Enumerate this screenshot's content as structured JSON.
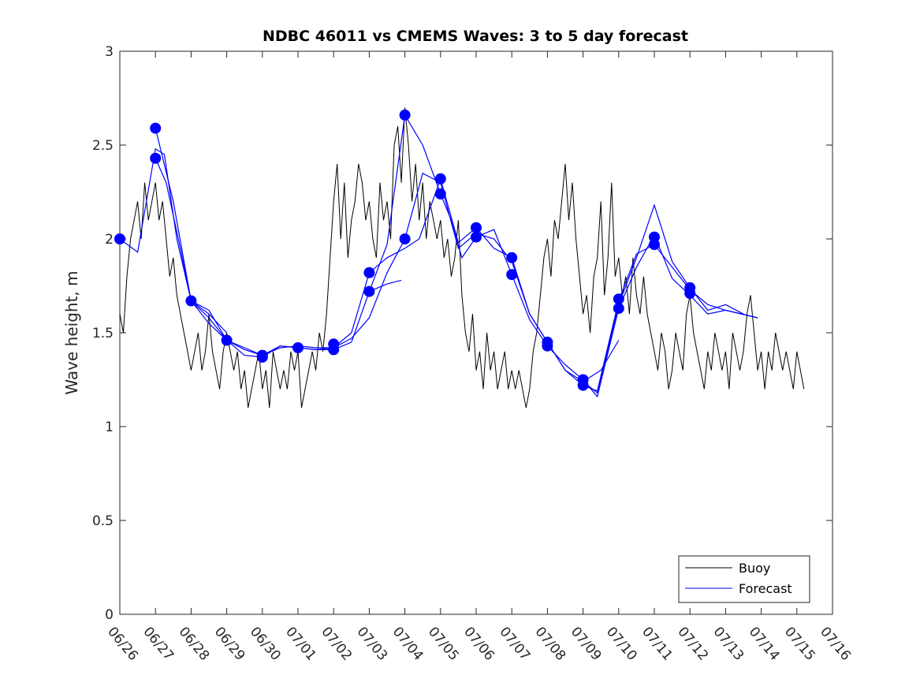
{
  "chart_data": {
    "type": "line",
    "title": "NDBC 46011 vs CMEMS Waves: 3 to 5 day forecast",
    "ylabel": "Wave height, m",
    "xlabel": "",
    "x_ticks": [
      "06/26",
      "06/27",
      "06/28",
      "06/29",
      "06/30",
      "07/01",
      "07/02",
      "07/03",
      "07/04",
      "07/05",
      "07/06",
      "07/07",
      "07/08",
      "07/09",
      "07/10",
      "07/11",
      "07/12",
      "07/13",
      "07/14",
      "07/15",
      "07/16"
    ],
    "y_ticks": [
      "0",
      "0.5",
      "1",
      "1.5",
      "2",
      "2.5",
      "3"
    ],
    "xlim": [
      0,
      20
    ],
    "ylim": [
      0,
      3
    ],
    "grid": false,
    "legend_position": "bottom-right",
    "colors": {
      "buoy": "#000000",
      "forecast": "#0000ff"
    },
    "legend": [
      "Buoy",
      "Forecast"
    ],
    "series": [
      {
        "name": "Buoy",
        "x": [
          0.0,
          0.1,
          0.2,
          0.3,
          0.4,
          0.5,
          0.6,
          0.7,
          0.8,
          0.9,
          1.0,
          1.1,
          1.2,
          1.3,
          1.4,
          1.5,
          1.6,
          1.7,
          1.8,
          1.9,
          2.0,
          2.1,
          2.2,
          2.3,
          2.4,
          2.5,
          2.6,
          2.7,
          2.8,
          2.9,
          3.0,
          3.1,
          3.2,
          3.3,
          3.4,
          3.5,
          3.6,
          3.7,
          3.8,
          3.9,
          4.0,
          4.1,
          4.2,
          4.3,
          4.4,
          4.5,
          4.6,
          4.7,
          4.8,
          4.9,
          5.0,
          5.1,
          5.2,
          5.3,
          5.4,
          5.5,
          5.6,
          5.7,
          5.8,
          5.9,
          6.0,
          6.1,
          6.2,
          6.3,
          6.4,
          6.5,
          6.6,
          6.7,
          6.8,
          6.9,
          7.0,
          7.1,
          7.2,
          7.3,
          7.4,
          7.5,
          7.6,
          7.7,
          7.8,
          7.9,
          8.0,
          8.1,
          8.2,
          8.3,
          8.4,
          8.5,
          8.6,
          8.7,
          8.8,
          8.9,
          9.0,
          9.1,
          9.2,
          9.3,
          9.4,
          9.5,
          9.6,
          9.7,
          9.8,
          9.9,
          10.0,
          10.1,
          10.2,
          10.3,
          10.4,
          10.5,
          10.6,
          10.7,
          10.8,
          10.9,
          11.0,
          11.1,
          11.2,
          11.3,
          11.4,
          11.5,
          11.6,
          11.7,
          11.8,
          11.9,
          12.0,
          12.1,
          12.2,
          12.3,
          12.4,
          12.5,
          12.6,
          12.7,
          12.8,
          12.9,
          13.0,
          13.1,
          13.2,
          13.3,
          13.4,
          13.5,
          13.6,
          13.7,
          13.8,
          13.9,
          14.0,
          14.1,
          14.2,
          14.3,
          14.4,
          14.5,
          14.6,
          14.7,
          14.8,
          14.9,
          15.0,
          15.1,
          15.2,
          15.3,
          15.4,
          15.5,
          15.6,
          15.7,
          15.8,
          15.9,
          16.0,
          16.1,
          16.2,
          16.3,
          16.4,
          16.5,
          16.6,
          16.7,
          16.8,
          16.9,
          17.0,
          17.1,
          17.2,
          17.3,
          17.4,
          17.5,
          17.6,
          17.7,
          17.8,
          17.9,
          18.0,
          18.1,
          18.2,
          18.3,
          18.4,
          18.5,
          18.6,
          18.7,
          18.8,
          18.9,
          19.0,
          19.1,
          19.2
        ],
        "values": [
          1.6,
          1.5,
          1.8,
          2.0,
          2.1,
          2.2,
          2.0,
          2.3,
          2.1,
          2.2,
          2.3,
          2.1,
          2.2,
          2.0,
          1.8,
          1.9,
          1.7,
          1.6,
          1.5,
          1.4,
          1.3,
          1.4,
          1.5,
          1.3,
          1.4,
          1.6,
          1.4,
          1.3,
          1.2,
          1.4,
          1.5,
          1.4,
          1.3,
          1.4,
          1.2,
          1.3,
          1.1,
          1.2,
          1.3,
          1.4,
          1.2,
          1.3,
          1.1,
          1.4,
          1.3,
          1.2,
          1.3,
          1.2,
          1.4,
          1.3,
          1.4,
          1.1,
          1.2,
          1.3,
          1.4,
          1.3,
          1.5,
          1.4,
          1.6,
          1.9,
          2.2,
          2.4,
          2.0,
          2.3,
          1.9,
          2.1,
          2.2,
          2.4,
          2.3,
          2.1,
          2.2,
          2.0,
          1.9,
          2.3,
          2.1,
          2.2,
          2.0,
          2.5,
          2.6,
          2.3,
          2.7,
          2.5,
          2.2,
          2.4,
          2.1,
          2.3,
          2.0,
          2.2,
          2.1,
          2.0,
          2.1,
          1.9,
          2.0,
          1.8,
          1.9,
          2.1,
          1.7,
          1.5,
          1.4,
          1.6,
          1.3,
          1.4,
          1.2,
          1.5,
          1.3,
          1.4,
          1.2,
          1.3,
          1.4,
          1.2,
          1.3,
          1.2,
          1.3,
          1.2,
          1.1,
          1.2,
          1.4,
          1.5,
          1.7,
          1.9,
          2.0,
          1.8,
          2.1,
          2.0,
          2.2,
          2.4,
          2.1,
          2.3,
          2.0,
          1.8,
          1.6,
          1.7,
          1.5,
          1.8,
          1.9,
          2.2,
          1.7,
          1.9,
          2.3,
          1.8,
          1.9,
          1.7,
          1.8,
          1.6,
          1.9,
          1.7,
          1.6,
          1.8,
          1.6,
          1.5,
          1.4,
          1.3,
          1.5,
          1.4,
          1.2,
          1.3,
          1.5,
          1.4,
          1.3,
          1.6,
          1.7,
          1.5,
          1.4,
          1.3,
          1.2,
          1.4,
          1.3,
          1.5,
          1.4,
          1.3,
          1.4,
          1.2,
          1.5,
          1.4,
          1.3,
          1.4,
          1.6,
          1.7,
          1.5,
          1.3,
          1.4,
          1.2,
          1.4,
          1.3,
          1.5,
          1.4,
          1.3,
          1.4,
          1.3,
          1.2,
          1.4,
          1.3,
          1.2
        ]
      },
      {
        "name": "Forecast",
        "lines": [
          [
            [
              0,
              2.0
            ],
            [
              0.5,
              1.93
            ],
            [
              1.0,
              2.48
            ],
            [
              1.25,
              2.45
            ],
            [
              1.6,
              2.0
            ],
            [
              2.0,
              1.67
            ],
            [
              2.5,
              1.55
            ],
            [
              3.0,
              1.46
            ],
            [
              3.5,
              1.41
            ],
            [
              4.0,
              1.38
            ],
            [
              4.5,
              1.42
            ],
            [
              5.0,
              1.43
            ],
            [
              5.5,
              1.42
            ],
            [
              6.0,
              1.42
            ],
            [
              6.5,
              1.47
            ],
            [
              7.0,
              1.58
            ],
            [
              7.5,
              1.82
            ],
            [
              8.0,
              2.0
            ],
            [
              8.5,
              2.35
            ],
            [
              9.0,
              2.3
            ],
            [
              9.5,
              1.95
            ],
            [
              10.0,
              2.03
            ],
            [
              10.5,
              2.0
            ],
            [
              11.0,
              1.88
            ],
            [
              11.5,
              1.6
            ],
            [
              12.0,
              1.45
            ],
            [
              12.5,
              1.3
            ],
            [
              13.0,
              1.24
            ],
            [
              13.4,
              1.18
            ],
            [
              14.0,
              1.65
            ],
            [
              14.5,
              1.9
            ],
            [
              15.0,
              2.18
            ],
            [
              15.5,
              1.88
            ],
            [
              16.0,
              1.74
            ],
            [
              16.5,
              1.62
            ],
            [
              17.0,
              1.65
            ],
            [
              17.5,
              1.6
            ]
          ],
          [
            [
              1.0,
              2.43
            ],
            [
              1.3,
              2.3
            ],
            [
              1.7,
              1.95
            ],
            [
              2.0,
              1.67
            ],
            [
              2.5,
              1.62
            ],
            [
              3.0,
              1.46
            ],
            [
              3.5,
              1.38
            ],
            [
              4.0,
              1.37
            ],
            [
              4.5,
              1.43
            ],
            [
              5.0,
              1.42
            ],
            [
              5.5,
              1.41
            ],
            [
              6.0,
              1.41
            ],
            [
              6.5,
              1.45
            ],
            [
              7.0,
              1.72
            ],
            [
              7.5,
              1.97
            ],
            [
              8.0,
              2.66
            ],
            [
              8.5,
              2.5
            ],
            [
              9.0,
              2.24
            ],
            [
              9.3,
              2.1
            ],
            [
              9.6,
              1.9
            ],
            [
              10.0,
              2.01
            ],
            [
              10.5,
              2.05
            ],
            [
              11.0,
              1.81
            ],
            [
              11.5,
              1.57
            ],
            [
              12.0,
              1.43
            ],
            [
              12.5,
              1.33
            ],
            [
              13.0,
              1.25
            ],
            [
              13.4,
              1.16
            ],
            [
              14.0,
              1.63
            ],
            [
              14.5,
              1.85
            ],
            [
              15.0,
              2.02
            ],
            [
              15.5,
              1.79
            ],
            [
              16.0,
              1.7
            ],
            [
              16.5,
              1.6
            ],
            [
              17.0,
              1.62
            ],
            [
              17.9,
              1.58
            ]
          ],
          [
            [
              1.0,
              2.59
            ],
            [
              1.5,
              2.2
            ],
            [
              2.0,
              1.67
            ],
            [
              2.5,
              1.58
            ],
            [
              3.0,
              1.46
            ],
            [
              3.5,
              1.42
            ],
            [
              4.0,
              1.38
            ],
            [
              4.5,
              1.43
            ],
            [
              5.0,
              1.42
            ],
            [
              5.5,
              1.41
            ],
            [
              6.0,
              1.42
            ],
            [
              6.5,
              1.5
            ],
            [
              7.0,
              1.82
            ],
            [
              7.5,
              1.9
            ],
            [
              8.0,
              1.95
            ],
            [
              8.4,
              2.0
            ],
            [
              9.0,
              2.32
            ],
            [
              9.5,
              1.98
            ],
            [
              10.0,
              2.06
            ],
            [
              10.5,
              1.95
            ],
            [
              11.0,
              1.9
            ],
            [
              11.5,
              1.6
            ],
            [
              12.0,
              1.45
            ],
            [
              12.5,
              1.3
            ],
            [
              13.0,
              1.22
            ],
            [
              13.4,
              1.19
            ],
            [
              14.0,
              1.67
            ],
            [
              14.5,
              1.92
            ],
            [
              15.0,
              1.97
            ],
            [
              15.5,
              1.85
            ],
            [
              16.0,
              1.73
            ],
            [
              16.5,
              1.65
            ],
            [
              17.0,
              1.62
            ],
            [
              17.9,
              1.58
            ]
          ],
          [
            [
              7.0,
              1.72
            ],
            [
              7.5,
              1.76
            ],
            [
              7.9,
              1.78
            ]
          ],
          [
            [
              13.0,
              1.24
            ],
            [
              13.5,
              1.3
            ],
            [
              14.0,
              1.46
            ]
          ],
          [
            [
              2.0,
              1.67
            ],
            [
              2.5,
              1.6
            ],
            [
              3.0,
              1.5
            ]
          ]
        ]
      }
    ],
    "markers": [
      [
        0,
        2.0
      ],
      [
        1.0,
        2.59
      ],
      [
        1.0,
        2.43
      ],
      [
        2.0,
        1.67
      ],
      [
        3.0,
        1.46
      ],
      [
        4.0,
        1.37
      ],
      [
        4.0,
        1.38
      ],
      [
        5.0,
        1.42
      ],
      [
        6.0,
        1.44
      ],
      [
        6.0,
        1.41
      ],
      [
        7.0,
        1.82
      ],
      [
        7.0,
        1.72
      ],
      [
        8.0,
        2.66
      ],
      [
        8.0,
        2.0
      ],
      [
        9.0,
        2.32
      ],
      [
        9.0,
        2.24
      ],
      [
        10.0,
        2.06
      ],
      [
        10.0,
        2.01
      ],
      [
        11.0,
        1.9
      ],
      [
        11.0,
        1.81
      ],
      [
        12.0,
        1.45
      ],
      [
        12.0,
        1.43
      ],
      [
        13.0,
        1.25
      ],
      [
        13.0,
        1.22
      ],
      [
        14.0,
        1.68
      ],
      [
        14.0,
        1.63
      ],
      [
        15.0,
        2.01
      ],
      [
        15.0,
        1.97
      ],
      [
        16.0,
        1.74
      ],
      [
        16.0,
        1.71
      ]
    ]
  }
}
